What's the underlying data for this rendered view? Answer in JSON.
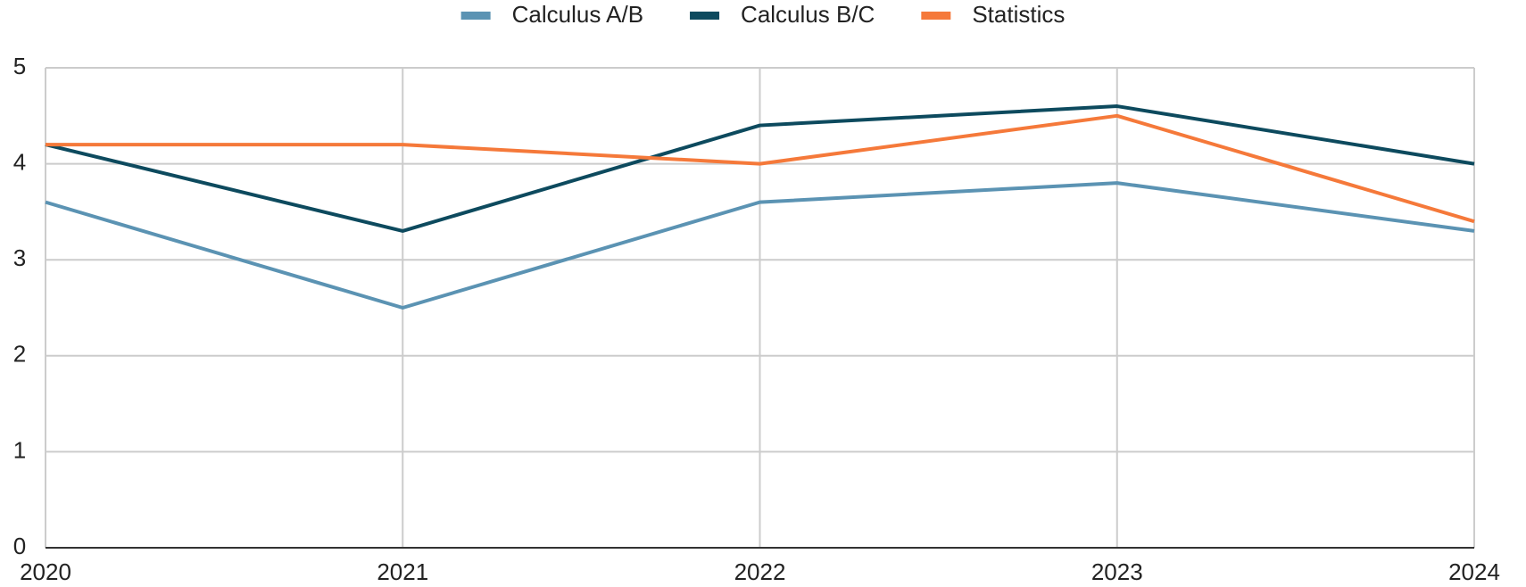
{
  "chart_data": {
    "type": "line",
    "categories": [
      "2020",
      "2021",
      "2022",
      "2023",
      "2024"
    ],
    "series": [
      {
        "name": "Calculus A/B",
        "color": "#5b93b3",
        "values": [
          3.6,
          2.5,
          3.6,
          3.8,
          3.3
        ]
      },
      {
        "name": "Calculus B/C",
        "color": "#0d4a5e",
        "values": [
          4.2,
          3.3,
          4.4,
          4.6,
          4.0
        ]
      },
      {
        "name": "Statistics",
        "color": "#f5793a",
        "values": [
          4.2,
          4.2,
          4.0,
          4.5,
          3.4
        ]
      }
    ],
    "ylim": [
      0,
      5
    ],
    "yticks": [
      0,
      1,
      2,
      3,
      4,
      5
    ],
    "grid": true,
    "legend": "top"
  }
}
